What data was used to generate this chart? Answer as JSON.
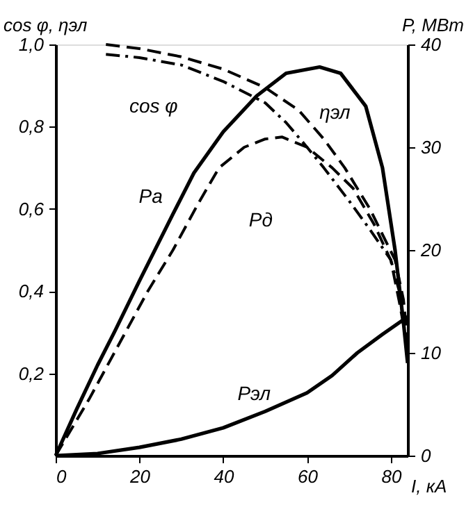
{
  "chart_data": {
    "type": "line",
    "xlabel": "I, кА",
    "ylabel": "cos φ, ηэл",
    "y2label": "P, МВт",
    "xlim": [
      0,
      84
    ],
    "xticks": [
      {
        "value": 0,
        "label": "0"
      },
      20,
      40,
      60,
      80
    ],
    "ylim": [
      0,
      1.0
    ],
    "yticks": [
      {
        "value": 0.2,
        "label": "0,2"
      },
      {
        "value": 0.4,
        "label": "0,4"
      },
      {
        "value": 0.6,
        "label": "0,6"
      },
      {
        "value": 0.8,
        "label": "0,8"
      },
      {
        "value": 1.0,
        "label": "1,0"
      }
    ],
    "y2lim": [
      0,
      40
    ],
    "y2ticks": [
      0,
      10,
      20,
      30,
      40
    ],
    "grid": false,
    "marker": "none",
    "series": [
      {
        "name": "cos φ",
        "color": "#000000",
        "line_style": "dashdot",
        "x": [
          12,
          20,
          30,
          40,
          50,
          55,
          60,
          64,
          70,
          75,
          80,
          82,
          84
        ],
        "values": [
          0.976,
          0.968,
          0.95,
          0.91,
          0.858,
          0.81,
          0.75,
          0.7,
          0.62,
          0.55,
          0.476,
          0.4,
          0.25
        ]
      },
      {
        "name": "ηэл",
        "color": "#000000",
        "line_style": "dashed",
        "x": [
          12,
          20,
          30,
          40,
          50,
          58,
          64,
          69,
          75,
          81,
          83,
          84
        ],
        "values": [
          1.0,
          0.99,
          0.97,
          0.94,
          0.895,
          0.84,
          0.77,
          0.7,
          0.6,
          0.476,
          0.38,
          0.28
        ]
      },
      {
        "name": "Pа",
        "color": "#000000",
        "line_style": "solid",
        "axis": "y2",
        "x": [
          0,
          5,
          10,
          14,
          20,
          28,
          33,
          40,
          48,
          55,
          63,
          68,
          74,
          78,
          81,
          83,
          84
        ],
        "values": [
          0,
          4.5,
          8.8,
          12,
          17,
          23.5,
          27.5,
          31.5,
          35,
          37.2,
          37.8,
          37.2,
          34,
          28,
          20,
          13,
          9
        ]
      },
      {
        "name": "Pд",
        "color": "#000000",
        "line_style": "dashed",
        "axis": "y2",
        "x": [
          0,
          8,
          16,
          22,
          28,
          34,
          39,
          45,
          50,
          54,
          60,
          66,
          71,
          76,
          80,
          82,
          84
        ],
        "values": [
          0,
          5.5,
          11.5,
          16,
          20,
          24.5,
          28,
          30,
          30.8,
          31,
          30,
          28,
          26,
          22.5,
          19,
          15,
          10.5
        ]
      },
      {
        "name": "Pэл",
        "color": "#000000",
        "line_style": "solid",
        "axis": "y2",
        "x": [
          0,
          10,
          20,
          30,
          40,
          50,
          60,
          66,
          72,
          78,
          84
        ],
        "values": [
          0,
          0.2,
          0.8,
          1.6,
          2.7,
          4.3,
          6.1,
          7.8,
          10,
          11.8,
          13.5
        ]
      }
    ]
  }
}
